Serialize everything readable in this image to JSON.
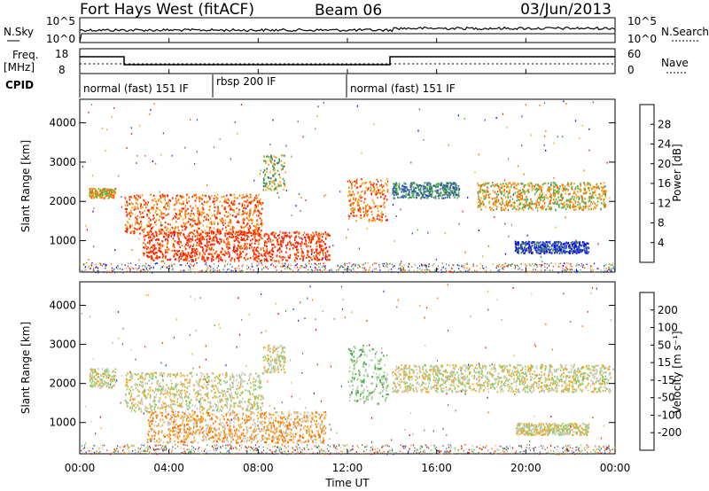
{
  "header": {
    "station": "Fort Hays West (fitACF)",
    "beam": "Beam 06",
    "date": "03/Jun/2013"
  },
  "top_panels": {
    "nsky_label": "N.Sky",
    "nsearch_label": "N.Search",
    "noise_ticks": [
      "10^5",
      "10^0"
    ],
    "freq_label": "Freq.",
    "freq_unit": "[MHz]",
    "freq_ticks": [
      "18",
      "8"
    ],
    "nave_label": "Nave",
    "nave_ticks": [
      "60",
      "0"
    ],
    "cpid_label": "CPID",
    "cpid_segments": [
      {
        "label": "normal (fast) 151 IF",
        "start_hr": 0,
        "end_hr": 6
      },
      {
        "label": "rbsp 200 IF",
        "start_hr": 6,
        "end_hr": 12
      },
      {
        "label": "normal (fast) 151 IF",
        "start_hr": 12,
        "end_hr": 24
      }
    ]
  },
  "x_axis": {
    "label": "Time UT",
    "ticks": [
      "00:00",
      "04:00",
      "08:00",
      "12:00",
      "16:00",
      "20:00",
      "00:00"
    ]
  },
  "chart_data": [
    {
      "type": "heatmap",
      "name": "power",
      "ylabel": "Slant Range [km]",
      "xlim_hours": [
        0,
        24
      ],
      "ylim_km": [
        200,
        4600
      ],
      "yticks": [
        "1000",
        "2000",
        "3000",
        "4000"
      ],
      "colorbar_label": "Power [dB]",
      "colorbar_ticks": [
        "4",
        "8",
        "12",
        "16",
        "20",
        "24",
        "28"
      ],
      "colors": [
        "#0a00ff",
        "#2c48c8",
        "#3a8060",
        "#52b050",
        "#f0a820",
        "#ff6a00",
        "#ff1a00"
      ],
      "bands": [
        {
          "t": [
            0.4,
            1.6
          ],
          "r": [
            2100,
            2350
          ],
          "level": 4
        },
        {
          "t": [
            2.0,
            8.2
          ],
          "r": [
            1200,
            2200
          ],
          "level": 5
        },
        {
          "t": [
            2.8,
            11.2
          ],
          "r": [
            500,
            1250
          ],
          "level": 6
        },
        {
          "t": [
            8.2,
            9.2
          ],
          "r": [
            2300,
            3200
          ],
          "level": 3
        },
        {
          "t": [
            12.0,
            13.8
          ],
          "r": [
            1500,
            2600
          ],
          "level": 5
        },
        {
          "t": [
            14.0,
            17.0
          ],
          "r": [
            2100,
            2500
          ],
          "level": 2
        },
        {
          "t": [
            17.8,
            23.6
          ],
          "r": [
            1800,
            2500
          ],
          "level": 4
        },
        {
          "t": [
            19.5,
            22.8
          ],
          "r": [
            700,
            1000
          ],
          "level": 1
        }
      ]
    },
    {
      "type": "heatmap",
      "name": "velocity",
      "ylabel": "Slant Range [km]",
      "xlim_hours": [
        0,
        24
      ],
      "ylim_km": [
        200,
        4600
      ],
      "yticks": [
        "1000",
        "2000",
        "3000",
        "4000"
      ],
      "colorbar_label": "Velocity [m s⁻¹]",
      "colorbar_ticks": [
        "200",
        "100",
        "50",
        "15",
        "-15",
        "-50",
        "-100",
        "-200"
      ],
      "colors": [
        "#2030c8",
        "#2e7080",
        "#4aa848",
        "#88d070",
        "#c8c8c0",
        "#f5a820",
        "#ff7000",
        "#ff3000",
        "#e00000"
      ],
      "bands": [
        {
          "t": [
            0.4,
            1.6
          ],
          "r": [
            1900,
            2400
          ],
          "level": 4
        },
        {
          "t": [
            2.0,
            8.2
          ],
          "r": [
            1300,
            2300
          ],
          "level": 4
        },
        {
          "t": [
            3.0,
            11.0
          ],
          "r": [
            500,
            1300
          ],
          "level": 5
        },
        {
          "t": [
            8.2,
            9.2
          ],
          "r": [
            2300,
            3000
          ],
          "level": 4
        },
        {
          "t": [
            12.0,
            13.8
          ],
          "r": [
            1500,
            3000
          ],
          "level": 3
        },
        {
          "t": [
            14.0,
            23.8
          ],
          "r": [
            1800,
            2500
          ],
          "level": 4
        },
        {
          "t": [
            19.5,
            22.8
          ],
          "r": [
            700,
            1000
          ],
          "level": 4
        }
      ]
    }
  ]
}
